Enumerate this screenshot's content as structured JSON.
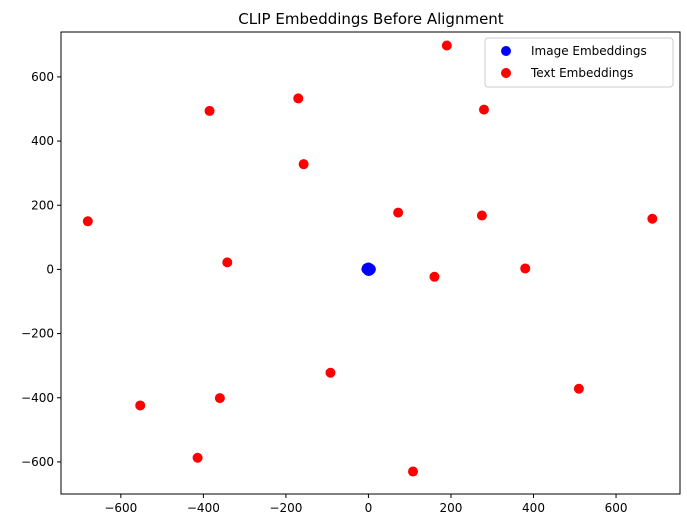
{
  "chart_data": {
    "type": "scatter",
    "title": "CLIP Embeddings Before Alignment",
    "xlabel": "",
    "ylabel": "",
    "xlim": [
      -745,
      755
    ],
    "ylim": [
      -700,
      740
    ],
    "xticks": [
      -600,
      -400,
      -200,
      0,
      200,
      400,
      600
    ],
    "yticks": [
      -600,
      -400,
      -200,
      0,
      200,
      400,
      600
    ],
    "xtick_labels": [
      "−600",
      "−400",
      "−200",
      "0",
      "200",
      "400",
      "600"
    ],
    "ytick_labels": [
      "−600",
      "−400",
      "−200",
      "0",
      "200",
      "400",
      "600"
    ],
    "grid": false,
    "legend_position": "top-right",
    "series": [
      {
        "name": "Image Embeddings",
        "color": "#0000ff",
        "points": [
          [
            0,
            0
          ],
          [
            -2,
            3
          ],
          [
            3,
            -2
          ],
          [
            1,
            5
          ],
          [
            -3,
            -1
          ],
          [
            4,
            2
          ],
          [
            -1,
            -4
          ],
          [
            2,
            1
          ],
          [
            -4,
            4
          ],
          [
            0,
            -3
          ],
          [
            5,
            -1
          ],
          [
            -2,
            -2
          ],
          [
            3,
            4
          ],
          [
            1,
            -5
          ],
          [
            -5,
            1
          ],
          [
            2,
            -1
          ],
          [
            -1,
            2
          ],
          [
            4,
            -3
          ],
          [
            6,
            1
          ],
          [
            -3,
            3
          ],
          [
            0,
            6
          ],
          [
            2,
            3
          ]
        ]
      },
      {
        "name": "Text Embeddings",
        "color": "#ff0000",
        "points": [
          [
            190,
            698
          ],
          [
            -170,
            533
          ],
          [
            -385,
            494
          ],
          [
            280,
            498
          ],
          [
            -157,
            328
          ],
          [
            72,
            177
          ],
          [
            275,
            168
          ],
          [
            -680,
            150
          ],
          [
            688,
            158
          ],
          [
            -342,
            22
          ],
          [
            380,
            3
          ],
          [
            160,
            -23
          ],
          [
            -92,
            -322
          ],
          [
            510,
            -372
          ],
          [
            -553,
            -424
          ],
          [
            -360,
            -401
          ],
          [
            -414,
            -587
          ],
          [
            108,
            -630
          ]
        ]
      }
    ]
  }
}
